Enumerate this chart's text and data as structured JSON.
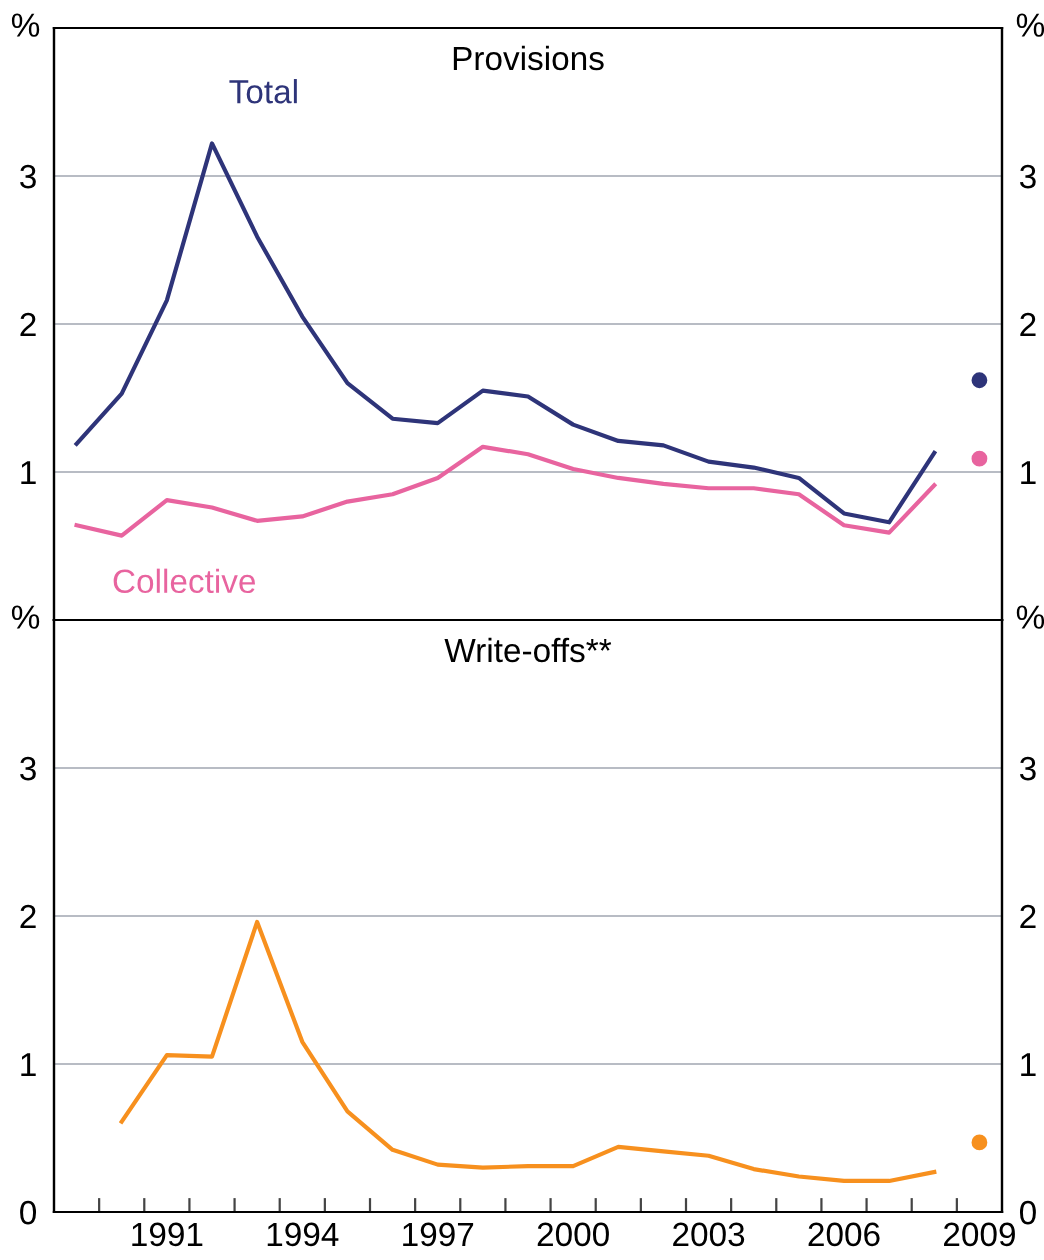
{
  "chart_data": [
    {
      "type": "line",
      "title": "Provisions",
      "ylabel": "%",
      "y2label": "%",
      "xlim": [
        1989,
        2010
      ],
      "ylim": [
        0,
        4
      ],
      "yticks": [
        1,
        2,
        3
      ],
      "y2lim": [
        0,
        4
      ],
      "y2ticks": [
        1,
        2,
        3
      ],
      "tick_labels": "y",
      "grid": "y",
      "legend": false,
      "series": [
        {
          "name": "Total",
          "color": "#2e3479",
          "x": [
            1989.5,
            1990.5,
            1991.5,
            1992.5,
            1993.5,
            1994.5,
            1995.5,
            1996.5,
            1997.5,
            1998.5,
            1999.5,
            2000.5,
            2001.5,
            2002.5,
            2003.5,
            2004.5,
            2005.5,
            2006.5,
            2007.5,
            2008.5
          ],
          "values": [
            1.19,
            1.53,
            2.16,
            3.22,
            2.59,
            2.05,
            1.6,
            1.36,
            1.33,
            1.55,
            1.51,
            1.32,
            1.21,
            1.18,
            1.07,
            1.03,
            0.96,
            0.72,
            0.66,
            1.13
          ]
        },
        {
          "name": "Collective",
          "color": "#e8649f",
          "x": [
            1989.5,
            1990.5,
            1991.5,
            1992.5,
            1993.5,
            1994.5,
            1995.5,
            1996.5,
            1997.5,
            1998.5,
            1999.5,
            2000.5,
            2001.5,
            2002.5,
            2003.5,
            2004.5,
            2005.5,
            2006.5,
            2007.5,
            2008.5
          ],
          "values": [
            0.64,
            0.57,
            0.81,
            0.76,
            0.67,
            0.7,
            0.8,
            0.85,
            0.96,
            1.17,
            1.12,
            1.02,
            0.96,
            0.92,
            0.89,
            0.89,
            0.85,
            0.64,
            0.59,
            0.91
          ]
        },
        {
          "type": "scatter",
          "marker": "circle",
          "color": "#2e3479",
          "x": [
            2009.5
          ],
          "values": [
            1.62
          ]
        },
        {
          "type": "scatter",
          "marker": "circle",
          "color": "#e8649f",
          "x": [
            2009.5
          ],
          "values": [
            1.09
          ]
        }
      ]
    },
    {
      "type": "line",
      "title": "Write-offs**",
      "ylabel": "%",
      "y2label": "%",
      "xlim": [
        1989,
        2010
      ],
      "ylim": [
        0,
        4
      ],
      "yticks": [
        0,
        1,
        2,
        3
      ],
      "y2lim": [
        0,
        4
      ],
      "y2ticks": [
        0,
        1,
        2,
        3
      ],
      "grid": "y",
      "legend": false,
      "xticks": [
        {
          "value": 1990,
          "label": null
        },
        {
          "value": 1991,
          "label": null
        },
        {
          "value": 1991.5,
          "label": "1991"
        },
        {
          "value": 1992,
          "label": null
        },
        {
          "value": 1993,
          "label": null
        },
        {
          "value": 1994,
          "label": null
        },
        {
          "value": 1994.5,
          "label": "1994"
        },
        {
          "value": 1995,
          "label": null
        },
        {
          "value": 1996,
          "label": null
        },
        {
          "value": 1997,
          "label": null
        },
        {
          "value": 1997.5,
          "label": "1997"
        },
        {
          "value": 1998,
          "label": null
        },
        {
          "value": 1999,
          "label": null
        },
        {
          "value": 2000,
          "label": null
        },
        {
          "value": 2000.5,
          "label": "2000"
        },
        {
          "value": 2001,
          "label": null
        },
        {
          "value": 2002,
          "label": null
        },
        {
          "value": 2003,
          "label": null
        },
        {
          "value": 2003.5,
          "label": "2003"
        },
        {
          "value": 2004,
          "label": null
        },
        {
          "value": 2005,
          "label": null
        },
        {
          "value": 2006,
          "label": null
        },
        {
          "value": 2006.5,
          "label": "2006"
        },
        {
          "value": 2007,
          "label": null
        },
        {
          "value": 2008,
          "label": null
        },
        {
          "value": 2009,
          "label": null
        },
        {
          "value": 2009.5,
          "label": "2009"
        }
      ],
      "series": [
        {
          "color": "#f7901e",
          "x": [
            1990.5,
            1991.5,
            1992.5,
            1993.5,
            1994.5,
            1995.5,
            1996.5,
            1997.5,
            1998.5,
            1999.5,
            2000.5,
            2001.5,
            2002.5,
            2003.5,
            2004.5,
            2005.5,
            2006.5,
            2007.5,
            2008.5
          ],
          "values": [
            0.61,
            1.06,
            1.05,
            1.96,
            1.15,
            0.68,
            0.42,
            0.32,
            0.3,
            0.31,
            0.31,
            0.44,
            0.41,
            0.38,
            0.29,
            0.24,
            0.21,
            0.21,
            0.27
          ]
        },
        {
          "type": "scatter",
          "marker": "circle",
          "color": "#f7901e",
          "x": [
            2009.5
          ],
          "values": [
            0.47
          ]
        }
      ]
    }
  ]
}
